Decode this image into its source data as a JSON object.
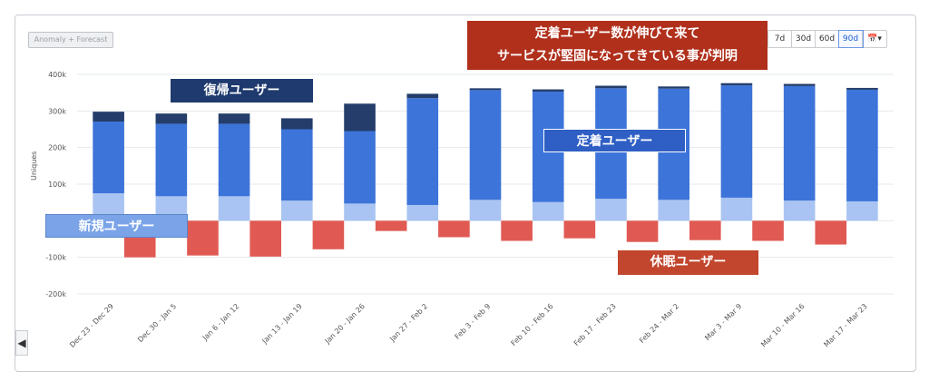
{
  "toolbar": {
    "anomaly_label": "Anomaly + Forecast",
    "ranges": [
      "7d",
      "30d",
      "60d",
      "90d"
    ],
    "active_range": "90d",
    "calendar_icon": "calendar-icon"
  },
  "annotations": {
    "returning": "復帰ユーザー",
    "new": "新規ユーザー",
    "retained": "定着ユーザー",
    "dormant": "休眠ユーザー",
    "headline_line1": "定着ユーザー数が伸びて来て",
    "headline_line2": "サービスが堅固になってきている事が判明"
  },
  "colors": {
    "new": "#a9c4f2",
    "retained": "#3d74d9",
    "returning": "#243d6b",
    "dormant": "#e05a53",
    "grid": "#e6e8eb",
    "axis_text": "#555555"
  },
  "chart_data": {
    "type": "bar",
    "stacked": true,
    "ylabel": "Uniques",
    "ylim": [
      -200000,
      400000
    ],
    "yticks": [
      400000,
      300000,
      200000,
      100000,
      0,
      -100000,
      -200000
    ],
    "ytick_labels": [
      "400k",
      "300k",
      "200k",
      "100k",
      "0",
      "-100k",
      "-200k"
    ],
    "categories": [
      "Dec 23 - Dec 29",
      "Dec 30 - Jan 5",
      "Jan 6 - Jan 12",
      "Jan 13 - Jan 19",
      "Jan 20 - Jan 26",
      "Jan 27 - Feb 2",
      "Feb 3 - Feb 9",
      "Feb 10 - Feb 16",
      "Feb 17 - Feb 23",
      "Feb 24 - Mar 2",
      "Mar 3 - Mar 9",
      "Mar 10 - Mar 16",
      "Mar 17 - Mar 23"
    ],
    "series": [
      {
        "key": "new",
        "values": [
          75000,
          67000,
          67000,
          55000,
          47000,
          43000,
          57000,
          51000,
          60000,
          57000,
          63000,
          55000,
          53000
        ]
      },
      {
        "key": "retained",
        "values": [
          196000,
          198000,
          198000,
          195000,
          198000,
          292000,
          300000,
          302000,
          302000,
          304000,
          307000,
          313000,
          305000
        ]
      },
      {
        "key": "returning",
        "values": [
          27000,
          28000,
          28000,
          30000,
          75000,
          12000,
          5000,
          6000,
          7000,
          6000,
          6000,
          6000,
          5000
        ]
      },
      {
        "key": "dormant",
        "values": [
          -100000,
          -95000,
          -98000,
          -78000,
          -28000,
          -45000,
          -55000,
          -48000,
          -58000,
          -53000,
          -55000,
          -65000,
          0
        ]
      }
    ],
    "grid": true,
    "legend": "none"
  }
}
